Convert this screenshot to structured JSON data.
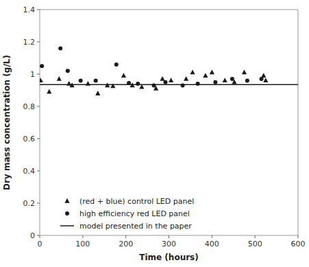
{
  "chart_data": {
    "type": "scatter",
    "xlabel": "Time (hours)",
    "ylabel": "Dry mass concentration (g/L)",
    "xlim": [
      0,
      600
    ],
    "ylim": [
      0,
      1.4
    ],
    "xticks": [
      0,
      100,
      200,
      300,
      400,
      500,
      600
    ],
    "yticks": [
      0,
      0.2,
      0.4,
      0.6,
      0.8,
      1,
      1.2,
      1.4
    ],
    "legend": "lower left",
    "series": [
      {
        "name": "(red + blue) control LED panel",
        "marker": "triangle",
        "color": "#1a1a1a",
        "x": [
          2,
          22,
          45,
          68,
          75,
          112,
          135,
          157,
          170,
          195,
          215,
          237,
          270,
          285,
          305,
          340,
          355,
          385,
          400,
          430,
          452,
          475,
          520,
          525
        ],
        "values": [
          0.96,
          0.89,
          0.97,
          0.94,
          0.93,
          0.94,
          0.88,
          0.93,
          0.925,
          0.99,
          0.93,
          0.92,
          0.91,
          0.97,
          0.96,
          0.97,
          1.01,
          0.99,
          1.01,
          0.96,
          0.95,
          1.01,
          0.99,
          0.96
        ]
      },
      {
        "name": "high efficiency red LED panel",
        "marker": "circle",
        "color": "#1a1a1a",
        "x": [
          5,
          48,
          65,
          95,
          130,
          178,
          207,
          228,
          265,
          292,
          332,
          367,
          408,
          447,
          482,
          515
        ],
        "values": [
          1.05,
          1.16,
          1.02,
          0.96,
          0.96,
          1.06,
          0.945,
          0.94,
          0.93,
          0.95,
          0.93,
          0.94,
          0.95,
          0.97,
          0.96,
          0.97
        ]
      },
      {
        "name": "model presented in the paper",
        "type": "hline",
        "line_style": "solid",
        "color": "#1a1a1a",
        "values": [
          0.935
        ]
      }
    ]
  }
}
